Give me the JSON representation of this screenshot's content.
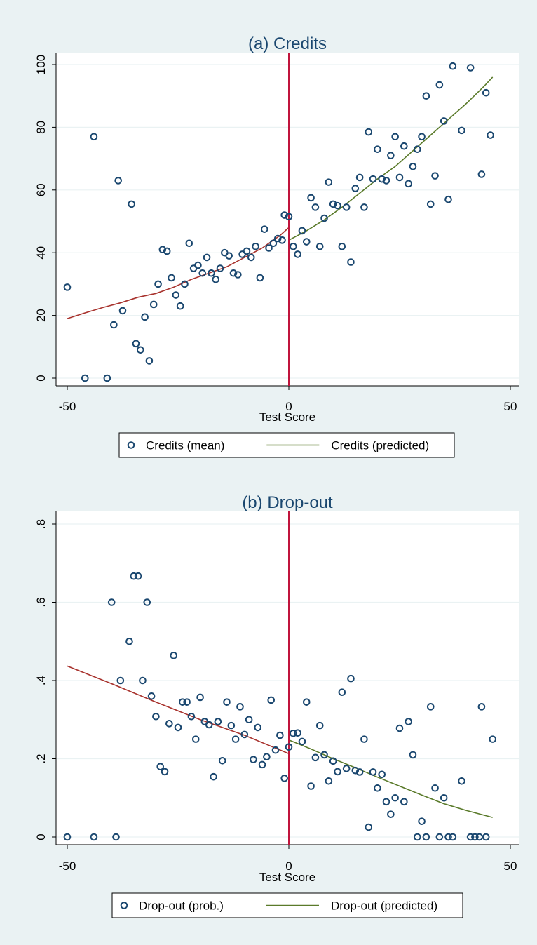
{
  "chart_data": [
    {
      "type": "scatter",
      "title": "(a) Credits",
      "xlabel": "Test Score",
      "ylabel": "",
      "xlim": [
        -50,
        50
      ],
      "ylim": [
        0,
        100
      ],
      "xticks": [
        "-50",
        "0",
        "50"
      ],
      "yticks": [
        "0",
        "20",
        "40",
        "60",
        "80",
        "100"
      ],
      "grid": true,
      "cutoff": 0,
      "legend": {
        "position": "bottom",
        "mean_label": "Credits (mean)",
        "pred_label": "Credits (predicted)"
      },
      "colors": {
        "points": "#1a476f",
        "fit_left": "#a8322d",
        "fit_right": "#5a7a2a",
        "cutoff": "#c0143c"
      },
      "points": [
        [
          -50,
          29
        ],
        [
          -46,
          0
        ],
        [
          -44,
          77
        ],
        [
          -41,
          0
        ],
        [
          -39.5,
          17
        ],
        [
          -38.5,
          63
        ],
        [
          -37.5,
          21.5
        ],
        [
          -35.5,
          55.5
        ],
        [
          -34.5,
          11
        ],
        [
          -33.5,
          9
        ],
        [
          -32.5,
          19.5
        ],
        [
          -31.5,
          5.5
        ],
        [
          -30.5,
          23.5
        ],
        [
          -29.5,
          30
        ],
        [
          -28.5,
          41
        ],
        [
          -27.5,
          40.5
        ],
        [
          -26.5,
          32
        ],
        [
          -25.5,
          26.5
        ],
        [
          -24.5,
          23
        ],
        [
          -23.5,
          30
        ],
        [
          -22.5,
          43
        ],
        [
          -21.5,
          35
        ],
        [
          -20.5,
          36
        ],
        [
          -19.5,
          33.5
        ],
        [
          -18.5,
          38.5
        ],
        [
          -17.5,
          33.5
        ],
        [
          -16.5,
          31.5
        ],
        [
          -15.5,
          35
        ],
        [
          -14.5,
          40
        ],
        [
          -13.5,
          39
        ],
        [
          -12.5,
          33.5
        ],
        [
          -11.5,
          33
        ],
        [
          -10.5,
          39.5
        ],
        [
          -9.5,
          40.5
        ],
        [
          -8.5,
          38.5
        ],
        [
          -7.5,
          42
        ],
        [
          -6.5,
          32
        ],
        [
          -5.5,
          47.5
        ],
        [
          -4.5,
          41.5
        ],
        [
          -3.5,
          43
        ],
        [
          -2.5,
          44.5
        ],
        [
          -1.5,
          44
        ],
        [
          -1,
          52
        ],
        [
          0,
          51.5
        ],
        [
          1,
          42
        ],
        [
          2,
          39.5
        ],
        [
          3,
          47
        ],
        [
          4,
          43.5
        ],
        [
          5,
          57.5
        ],
        [
          6,
          54.5
        ],
        [
          7,
          42
        ],
        [
          8,
          51
        ],
        [
          9,
          62.5
        ],
        [
          10,
          55.5
        ],
        [
          11,
          55
        ],
        [
          12,
          42
        ],
        [
          13,
          54.5
        ],
        [
          14,
          37
        ],
        [
          15,
          60.5
        ],
        [
          16,
          64
        ],
        [
          17,
          54.5
        ],
        [
          18,
          78.5
        ],
        [
          19,
          63.5
        ],
        [
          20,
          73
        ],
        [
          21,
          63.5
        ],
        [
          22,
          63
        ],
        [
          23,
          71
        ],
        [
          24,
          77
        ],
        [
          25,
          64
        ],
        [
          26,
          74
        ],
        [
          27,
          62
        ],
        [
          28,
          67.5
        ],
        [
          29,
          73
        ],
        [
          30,
          77
        ],
        [
          31,
          90
        ],
        [
          32,
          55.5
        ],
        [
          33,
          64.5
        ],
        [
          34,
          93.5
        ],
        [
          35,
          82
        ],
        [
          36,
          57
        ],
        [
          37,
          99.5
        ],
        [
          39,
          79
        ],
        [
          41,
          99
        ],
        [
          43.5,
          65
        ],
        [
          44.5,
          91
        ],
        [
          45.5,
          77.5
        ]
      ],
      "fit_left": [
        [
          -50,
          19
        ],
        [
          -46,
          20.8
        ],
        [
          -42,
          22.5
        ],
        [
          -38,
          24
        ],
        [
          -34,
          25.8
        ],
        [
          -30,
          27
        ],
        [
          -26,
          29
        ],
        [
          -22,
          31.5
        ],
        [
          -18,
          33.5
        ],
        [
          -14,
          35.5
        ],
        [
          -10,
          38.5
        ],
        [
          -6,
          41.5
        ],
        [
          -2,
          45.5
        ],
        [
          0,
          48
        ]
      ],
      "fit_right": [
        [
          0,
          44
        ],
        [
          4,
          47
        ],
        [
          8,
          50.5
        ],
        [
          12,
          54.5
        ],
        [
          16,
          59
        ],
        [
          20,
          63.5
        ],
        [
          24,
          67.5
        ],
        [
          28,
          72.5
        ],
        [
          32,
          77.5
        ],
        [
          36,
          82.5
        ],
        [
          40,
          87.5
        ],
        [
          44,
          93
        ],
        [
          46,
          96
        ]
      ]
    },
    {
      "type": "scatter",
      "title": "(b) Drop-out",
      "xlabel": "Test Score",
      "ylabel": "",
      "xlim": [
        -50,
        50
      ],
      "ylim": [
        0,
        0.8
      ],
      "xticks": [
        "-50",
        "0",
        "50"
      ],
      "yticks": [
        "0",
        ".2",
        ".4",
        ".6",
        ".8"
      ],
      "grid": true,
      "cutoff": 0,
      "legend": {
        "position": "bottom",
        "mean_label": "Drop-out (prob.)",
        "pred_label": "Drop-out (predicted)"
      },
      "colors": {
        "points": "#1a476f",
        "fit_left": "#a8322d",
        "fit_right": "#5a7a2a",
        "cutoff": "#c0143c"
      },
      "points": [
        [
          -50,
          0
        ],
        [
          -44,
          0
        ],
        [
          -39,
          0
        ],
        [
          -40,
          0.6
        ],
        [
          -38,
          0.4
        ],
        [
          -36,
          0.5
        ],
        [
          -35,
          0.667
        ],
        [
          -34,
          0.667
        ],
        [
          -33,
          0.4
        ],
        [
          -32,
          0.6
        ],
        [
          -31,
          0.36
        ],
        [
          -30,
          0.308
        ],
        [
          -29,
          0.18
        ],
        [
          -28,
          0.167
        ],
        [
          -27,
          0.29
        ],
        [
          -26,
          0.464
        ],
        [
          -25,
          0.28
        ],
        [
          -24,
          0.345
        ],
        [
          -23,
          0.345
        ],
        [
          -22,
          0.308
        ],
        [
          -21,
          0.25
        ],
        [
          -20,
          0.357
        ],
        [
          -19,
          0.295
        ],
        [
          -18,
          0.287
        ],
        [
          -17,
          0.154
        ],
        [
          -16,
          0.295
        ],
        [
          -15,
          0.195
        ],
        [
          -14,
          0.345
        ],
        [
          -13,
          0.285
        ],
        [
          -12,
          0.25
        ],
        [
          -11,
          0.333
        ],
        [
          -10,
          0.262
        ],
        [
          -9,
          0.3
        ],
        [
          -8,
          0.198
        ],
        [
          -7,
          0.28
        ],
        [
          -6,
          0.185
        ],
        [
          -5,
          0.205
        ],
        [
          -4,
          0.35
        ],
        [
          -3,
          0.222
        ],
        [
          -2,
          0.26
        ],
        [
          -1,
          0.15
        ],
        [
          0,
          0.23
        ],
        [
          1,
          0.265
        ],
        [
          2,
          0.266
        ],
        [
          3,
          0.244
        ],
        [
          4,
          0.345
        ],
        [
          5,
          0.13
        ],
        [
          6,
          0.203
        ],
        [
          7,
          0.285
        ],
        [
          8,
          0.21
        ],
        [
          9,
          0.143
        ],
        [
          10,
          0.194
        ],
        [
          11,
          0.167
        ],
        [
          12,
          0.37
        ],
        [
          13,
          0.175
        ],
        [
          14,
          0.405
        ],
        [
          15,
          0.17
        ],
        [
          16,
          0.166
        ],
        [
          17,
          0.25
        ],
        [
          18,
          0.025
        ],
        [
          19,
          0.166
        ],
        [
          20,
          0.125
        ],
        [
          21,
          0.16
        ],
        [
          22,
          0.09
        ],
        [
          23,
          0.058
        ],
        [
          24,
          0.1
        ],
        [
          25,
          0.278
        ],
        [
          26,
          0.09
        ],
        [
          27,
          0.295
        ],
        [
          28,
          0.21
        ],
        [
          29,
          0
        ],
        [
          30,
          0.04
        ],
        [
          31,
          0
        ],
        [
          32,
          0.333
        ],
        [
          33,
          0.125
        ],
        [
          34,
          0
        ],
        [
          35,
          0.1
        ],
        [
          36,
          0
        ],
        [
          37,
          0
        ],
        [
          39,
          0.143
        ],
        [
          41,
          0
        ],
        [
          42,
          0
        ],
        [
          43,
          0
        ],
        [
          43.5,
          0.333
        ],
        [
          44.5,
          0
        ],
        [
          46,
          0.25
        ]
      ],
      "fit_left": [
        [
          -50,
          0.437
        ],
        [
          -40,
          0.392
        ],
        [
          -30,
          0.345
        ],
        [
          -20,
          0.3
        ],
        [
          -10,
          0.26
        ],
        [
          0,
          0.213
        ]
      ],
      "fit_right": [
        [
          0,
          0.248
        ],
        [
          5,
          0.225
        ],
        [
          10,
          0.2
        ],
        [
          15,
          0.177
        ],
        [
          20,
          0.153
        ],
        [
          25,
          0.13
        ],
        [
          30,
          0.107
        ],
        [
          35,
          0.085
        ],
        [
          40,
          0.068
        ],
        [
          46,
          0.05
        ]
      ]
    }
  ]
}
